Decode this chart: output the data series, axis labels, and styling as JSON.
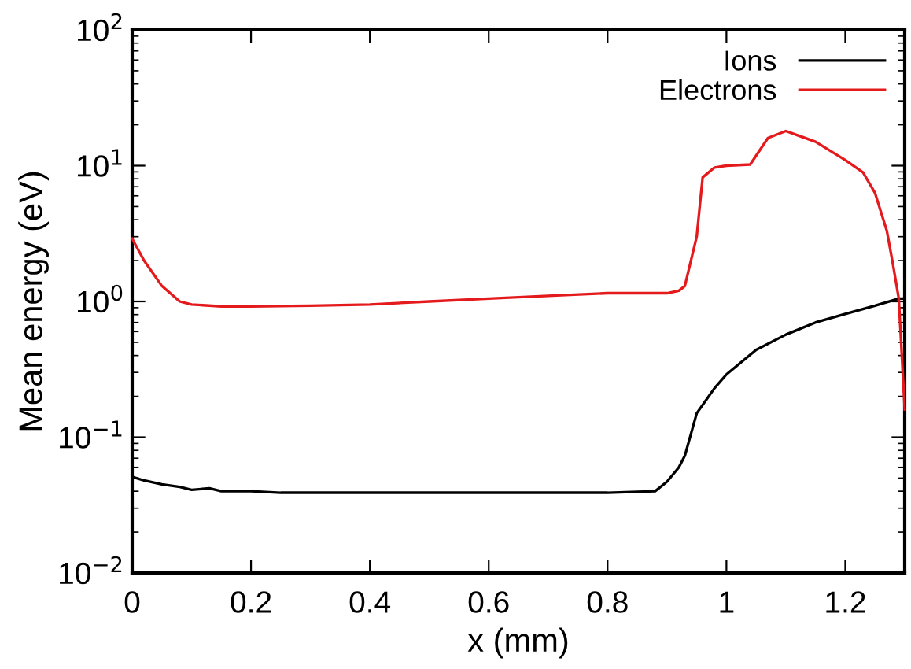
{
  "chart_data": {
    "type": "line",
    "xlabel": "x (mm)",
    "ylabel": "Mean energy (eV)",
    "log": "y",
    "xlim": [
      0,
      1.3
    ],
    "ylim": [
      0.01,
      100
    ],
    "xticks": [
      0,
      0.2,
      0.4,
      0.6,
      0.8,
      1,
      1.2
    ],
    "yticks": [
      {
        "value": 0.01,
        "label": "10$^{−2}$"
      },
      {
        "value": 0.1,
        "label": "10$^{−1}$"
      },
      {
        "value": 1,
        "label": "10$^{0}$"
      },
      {
        "value": 10,
        "label": "10$^{1}$"
      },
      {
        "value": 100,
        "label": "10$^{2}$"
      }
    ],
    "grid": false,
    "legend": "top right",
    "marker": "none",
    "line_style": "solid",
    "series": [
      {
        "name": "Ions",
        "color": "#000000",
        "x": [
          0,
          0.02,
          0.05,
          0.08,
          0.1,
          0.13,
          0.15,
          0.2,
          0.25,
          0.3,
          0.4,
          0.5,
          0.6,
          0.7,
          0.8,
          0.88,
          0.9,
          0.92,
          0.93,
          0.95,
          0.98,
          1.0,
          1.05,
          1.1,
          1.15,
          1.2,
          1.25,
          1.29,
          1.3
        ],
        "values": [
          0.051,
          0.048,
          0.045,
          0.043,
          0.041,
          0.042,
          0.04,
          0.04,
          0.039,
          0.039,
          0.039,
          0.039,
          0.039,
          0.039,
          0.039,
          0.04,
          0.047,
          0.06,
          0.073,
          0.15,
          0.23,
          0.29,
          0.44,
          0.57,
          0.7,
          0.81,
          0.93,
          1.05,
          1.05
        ]
      },
      {
        "name": "Electrons",
        "color": "#e41a1c",
        "x": [
          0,
          0.02,
          0.05,
          0.08,
          0.1,
          0.15,
          0.2,
          0.3,
          0.4,
          0.5,
          0.6,
          0.7,
          0.8,
          0.9,
          0.92,
          0.93,
          0.95,
          0.96,
          0.98,
          1.0,
          1.04,
          1.07,
          1.1,
          1.15,
          1.2,
          1.23,
          1.25,
          1.27,
          1.28,
          1.29,
          1.3
        ],
        "values": [
          2.9,
          2.0,
          1.3,
          1.0,
          0.95,
          0.92,
          0.92,
          0.93,
          0.95,
          1.0,
          1.05,
          1.1,
          1.15,
          1.15,
          1.2,
          1.3,
          3.0,
          8.2,
          9.7,
          10,
          10.2,
          16,
          18,
          15,
          11,
          8.9,
          6.3,
          3.3,
          1.9,
          1.05,
          0.16
        ]
      }
    ]
  }
}
